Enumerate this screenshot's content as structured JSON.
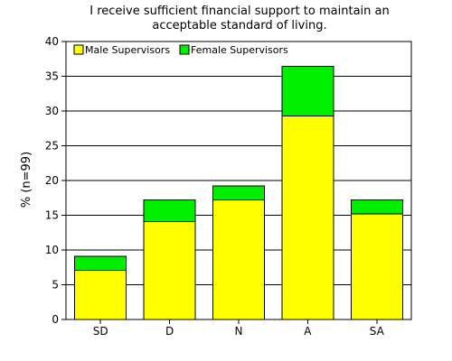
{
  "chart_data": {
    "type": "bar",
    "stacked": true,
    "title_lines": [
      "I receive sufficient financial support to maintain an",
      "acceptable standard of living."
    ],
    "xlabel": "",
    "ylabel": "% (n=99)",
    "categories": [
      "SD",
      "D",
      "N",
      "A",
      "SA"
    ],
    "series": [
      {
        "name": "Male Supervisors",
        "values": [
          7.1,
          14.1,
          17.2,
          29.3,
          15.2
        ]
      },
      {
        "name": "Female Supervisors",
        "values": [
          2.0,
          3.1,
          2.0,
          7.1,
          2.0
        ]
      }
    ],
    "ylim": [
      0,
      40
    ],
    "yticks": [
      0,
      5,
      10,
      15,
      20,
      25,
      30,
      35,
      40
    ],
    "grid": "horizontal",
    "legend_position": "top-left",
    "colors": {
      "Male Supervisors": "#ffff00",
      "Female Supervisors": "#00ee00",
      "edge": "#000000",
      "background": "#ffffff"
    }
  }
}
